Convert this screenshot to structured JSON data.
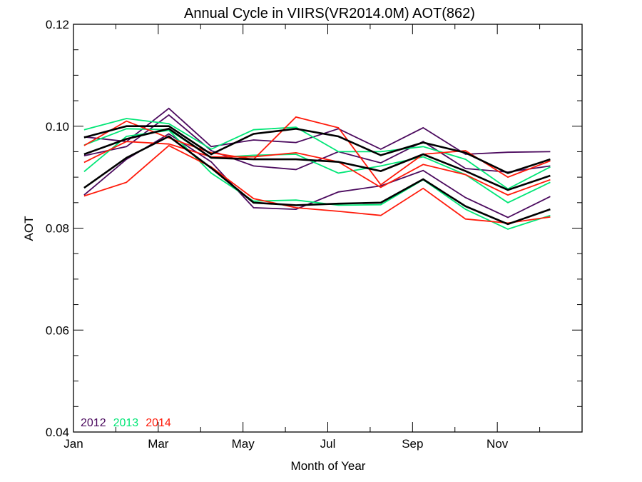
{
  "chart_data": {
    "type": "line",
    "title": "Annual Cycle in VIIRS(VR2014.0M) AOT(862)",
    "xlabel": "Month of Year",
    "ylabel": "AOT",
    "xlim": [
      1,
      13
    ],
    "ylim": [
      0.04,
      0.12
    ],
    "x_ticks": [
      {
        "value": 1,
        "label": "Jan"
      },
      {
        "value": 3,
        "label": "Mar"
      },
      {
        "value": 5,
        "label": "May"
      },
      {
        "value": 7,
        "label": "Jul"
      },
      {
        "value": 9,
        "label": "Sep"
      },
      {
        "value": 11,
        "label": "Nov"
      }
    ],
    "y_ticks": [
      {
        "value": 0.04,
        "label": "0.04"
      },
      {
        "value": 0.06,
        "label": "0.06"
      },
      {
        "value": 0.08,
        "label": "0.08"
      },
      {
        "value": 0.1,
        "label": "0.10"
      },
      {
        "value": 0.12,
        "label": "0.12"
      }
    ],
    "grid": false,
    "legend_position": "bottom-left",
    "legend": [
      {
        "label": "2012",
        "color": "#4b0a5e"
      },
      {
        "label": "2013",
        "color": "#00e676"
      },
      {
        "label": "2014",
        "color": "#ff1a0a"
      }
    ],
    "x": [
      1.25,
      2.25,
      3.25,
      4.25,
      5.25,
      6.25,
      7.25,
      8.25,
      9.25,
      10.25,
      11.25,
      12.25
    ],
    "series": [
      {
        "color": "#4b0a5e",
        "values": [
          0.0979,
          0.097,
          0.1035,
          0.096,
          0.0973,
          0.0968,
          0.0995,
          0.0955,
          0.0997,
          0.0945,
          0.0949,
          0.095
        ]
      },
      {
        "color": "#4b0a5e",
        "values": [
          0.0942,
          0.096,
          0.1022,
          0.0952,
          0.0922,
          0.0915,
          0.095,
          0.0928,
          0.097,
          0.0917,
          0.091,
          0.0922
        ]
      },
      {
        "color": "#4b0a5e",
        "values": [
          0.0865,
          0.0935,
          0.0985,
          0.093,
          0.084,
          0.0837,
          0.0871,
          0.0883,
          0.0913,
          0.086,
          0.0821,
          0.0862
        ]
      },
      {
        "color": "#00e676",
        "values": [
          0.0993,
          0.1015,
          0.1005,
          0.0955,
          0.0993,
          0.0998,
          0.095,
          0.095,
          0.096,
          0.0935,
          0.0877,
          0.092
        ]
      },
      {
        "color": "#00e676",
        "values": [
          0.0963,
          0.0995,
          0.0993,
          0.0938,
          0.0943,
          0.0945,
          0.0908,
          0.0922,
          0.094,
          0.0905,
          0.085,
          0.089
        ]
      },
      {
        "color": "#00e676",
        "values": [
          0.0911,
          0.098,
          0.0992,
          0.0908,
          0.0853,
          0.0855,
          0.0845,
          0.0846,
          0.0895,
          0.0837,
          0.0798,
          0.0825
        ]
      },
      {
        "color": "#ff1a0a",
        "values": [
          0.0962,
          0.101,
          0.0977,
          0.0948,
          0.0935,
          0.1018,
          0.0997,
          0.0885,
          0.0945,
          0.0952,
          0.09,
          0.0932
        ]
      },
      {
        "color": "#ff1a0a",
        "values": [
          0.0929,
          0.097,
          0.0965,
          0.094,
          0.094,
          0.0948,
          0.093,
          0.088,
          0.0925,
          0.0905,
          0.0865,
          0.0895
        ]
      },
      {
        "color": "#ff1a0a",
        "values": [
          0.0863,
          0.089,
          0.0962,
          0.092,
          0.0858,
          0.084,
          0.0833,
          0.0825,
          0.0878,
          0.0818,
          0.081,
          0.0822
        ]
      },
      {
        "color": "#000000",
        "values": [
          0.0978,
          0.1,
          0.1,
          0.0945,
          0.0985,
          0.0995,
          0.098,
          0.0943,
          0.0968,
          0.0948,
          0.0908,
          0.0935
        ]
      },
      {
        "color": "#000000",
        "values": [
          0.0945,
          0.0975,
          0.0995,
          0.0938,
          0.0935,
          0.0935,
          0.093,
          0.0912,
          0.0945,
          0.0912,
          0.0875,
          0.0903
        ]
      },
      {
        "color": "#000000",
        "values": [
          0.0879,
          0.0938,
          0.098,
          0.0918,
          0.085,
          0.0845,
          0.0848,
          0.085,
          0.0896,
          0.0843,
          0.0808,
          0.0837
        ]
      }
    ]
  }
}
